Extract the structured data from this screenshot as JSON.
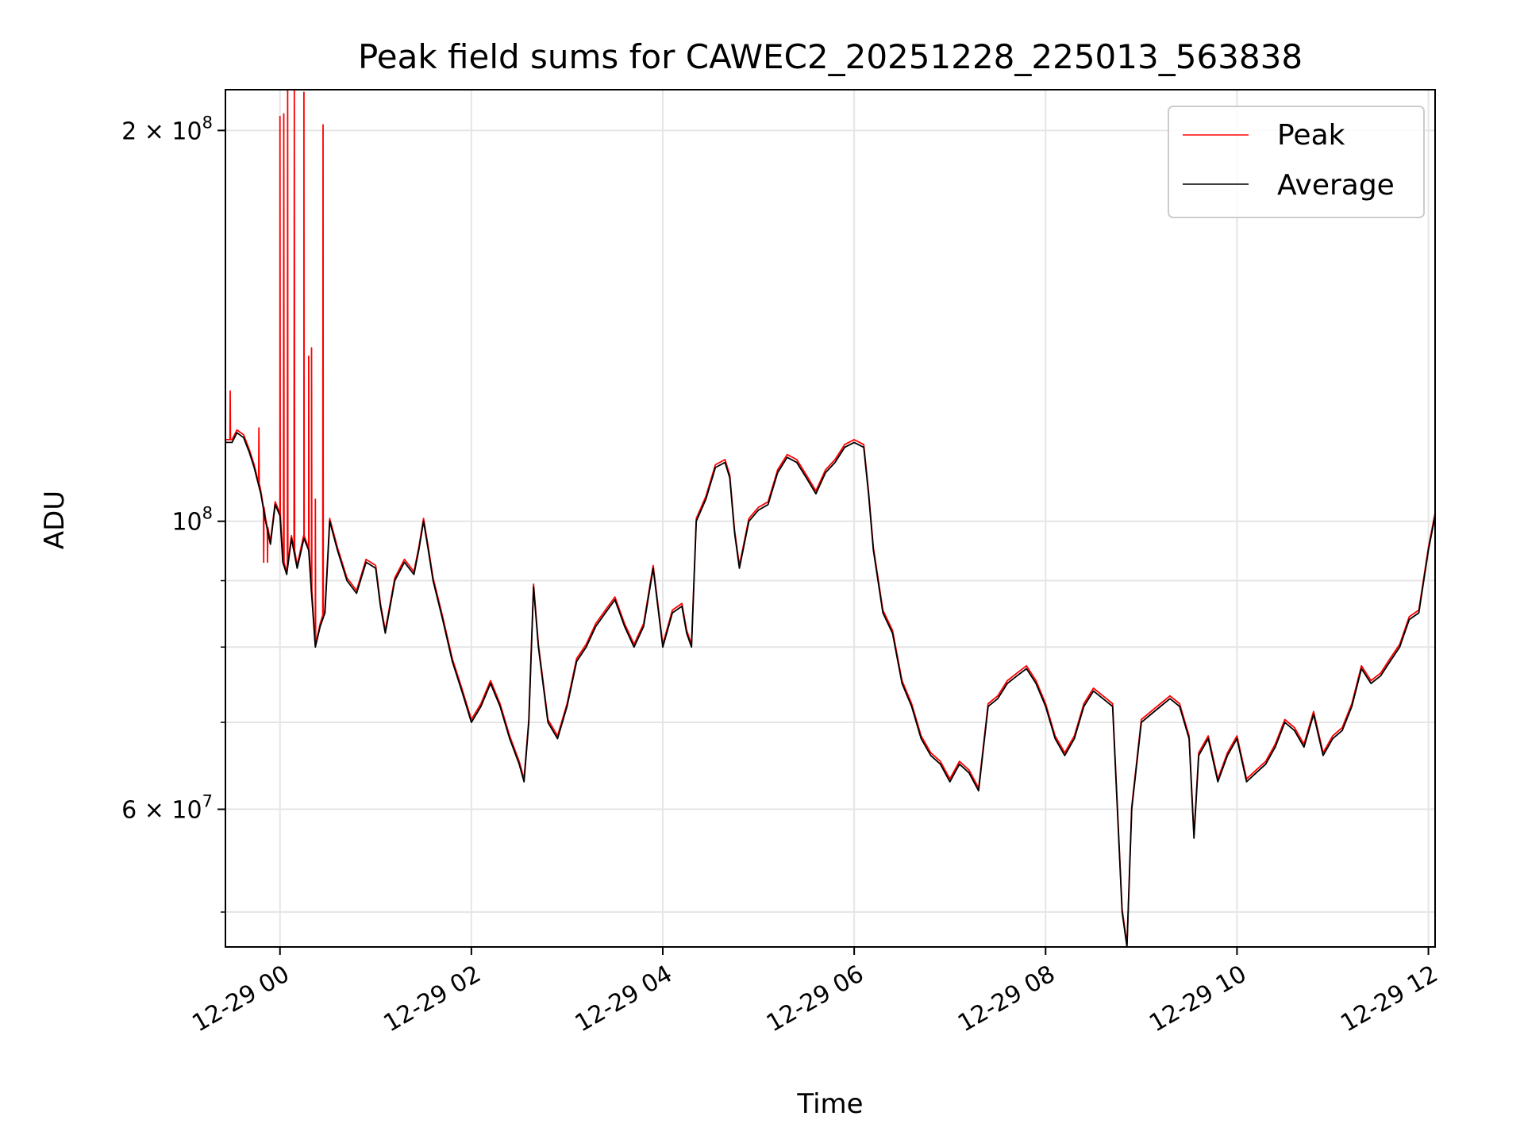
{
  "chart_data": {
    "type": "line",
    "title": "Peak field sums for CAWEC2_20251228_225013_563838",
    "xlabel": "Time",
    "ylabel": "ADU",
    "yscale": "log",
    "xlim_hours": [
      -0.57,
      12.07
    ],
    "ylim": [
      47000000,
      215000000
    ],
    "x_unit": "hours since 12-29 00",
    "x_ticks": [
      {
        "value": 0,
        "label": "12-29 00"
      },
      {
        "value": 2,
        "label": "12-29 02"
      },
      {
        "value": 4,
        "label": "12-29 04"
      },
      {
        "value": 6,
        "label": "12-29 06"
      },
      {
        "value": 8,
        "label": "12-29 08"
      },
      {
        "value": 10,
        "label": "12-29 10"
      },
      {
        "value": 12,
        "label": "12-29 12"
      }
    ],
    "y_ticks_major": [
      {
        "value": 60000000,
        "base": "6 × 10",
        "exp": "7"
      },
      {
        "value": 100000000,
        "base": "10",
        "exp": "8"
      },
      {
        "value": 200000000,
        "base": "2 × 10",
        "exp": "8"
      }
    ],
    "y_ticks_minor": [
      50000000,
      70000000,
      80000000,
      90000000
    ],
    "grid": true,
    "legend_position": "top-right",
    "series": [
      {
        "name": "Peak",
        "color": "#ff0000",
        "spikes": [
          {
            "x": -0.22,
            "y": 118000000
          },
          {
            "x": -0.17,
            "y": 93000000
          },
          {
            "x": -0.13,
            "y": 93000000
          },
          {
            "x": 0.0,
            "y": 205000000
          },
          {
            "x": 0.04,
            "y": 206000000
          },
          {
            "x": 0.08,
            "y": 215000000
          },
          {
            "x": 0.15,
            "y": 215000000
          },
          {
            "x": 0.25,
            "y": 214000000
          },
          {
            "x": 0.3,
            "y": 134000000
          },
          {
            "x": 0.33,
            "y": 136000000
          },
          {
            "x": 0.37,
            "y": 104000000
          },
          {
            "x": 0.45,
            "y": 202000000
          },
          {
            "x": -0.52,
            "y": 126000000
          }
        ]
      },
      {
        "name": "Average",
        "color": "#000000",
        "points": [
          [
            -0.57,
            115000000
          ],
          [
            -0.5,
            115000000
          ],
          [
            -0.45,
            117000000
          ],
          [
            -0.38,
            116000000
          ],
          [
            -0.32,
            113000000
          ],
          [
            -0.27,
            110000000
          ],
          [
            -0.2,
            105000000
          ],
          [
            -0.15,
            100000000
          ],
          [
            -0.1,
            96000000
          ],
          [
            -0.05,
            103000000
          ],
          [
            0.0,
            101000000
          ],
          [
            0.03,
            93000000
          ],
          [
            0.07,
            91000000
          ],
          [
            0.12,
            97000000
          ],
          [
            0.18,
            92000000
          ],
          [
            0.25,
            97000000
          ],
          [
            0.3,
            95000000
          ],
          [
            0.33,
            88000000
          ],
          [
            0.37,
            80000000
          ],
          [
            0.42,
            83000000
          ],
          [
            0.47,
            85000000
          ],
          [
            0.52,
            100000000
          ],
          [
            0.6,
            95000000
          ],
          [
            0.7,
            90000000
          ],
          [
            0.8,
            88000000
          ],
          [
            0.9,
            93000000
          ],
          [
            1.0,
            92000000
          ],
          [
            1.05,
            86000000
          ],
          [
            1.1,
            82000000
          ],
          [
            1.2,
            90000000
          ],
          [
            1.3,
            93000000
          ],
          [
            1.4,
            91000000
          ],
          [
            1.45,
            95000000
          ],
          [
            1.5,
            100000000
          ],
          [
            1.55,
            95000000
          ],
          [
            1.6,
            90000000
          ],
          [
            1.7,
            84000000
          ],
          [
            1.8,
            78000000
          ],
          [
            1.9,
            74000000
          ],
          [
            2.0,
            70000000
          ],
          [
            2.1,
            72000000
          ],
          [
            2.2,
            75000000
          ],
          [
            2.3,
            72000000
          ],
          [
            2.4,
            68000000
          ],
          [
            2.5,
            65000000
          ],
          [
            2.55,
            63000000
          ],
          [
            2.6,
            70000000
          ],
          [
            2.65,
            89000000
          ],
          [
            2.7,
            80000000
          ],
          [
            2.8,
            70000000
          ],
          [
            2.9,
            68000000
          ],
          [
            3.0,
            72000000
          ],
          [
            3.1,
            78000000
          ],
          [
            3.2,
            80000000
          ],
          [
            3.3,
            83000000
          ],
          [
            3.4,
            85000000
          ],
          [
            3.5,
            87000000
          ],
          [
            3.6,
            83000000
          ],
          [
            3.7,
            80000000
          ],
          [
            3.8,
            83000000
          ],
          [
            3.9,
            92000000
          ],
          [
            4.0,
            80000000
          ],
          [
            4.1,
            85000000
          ],
          [
            4.2,
            86000000
          ],
          [
            4.25,
            82000000
          ],
          [
            4.3,
            80000000
          ],
          [
            4.35,
            100000000
          ],
          [
            4.45,
            104000000
          ],
          [
            4.55,
            110000000
          ],
          [
            4.65,
            111000000
          ],
          [
            4.7,
            108000000
          ],
          [
            4.75,
            98000000
          ],
          [
            4.8,
            92000000
          ],
          [
            4.9,
            100000000
          ],
          [
            5.0,
            102000000
          ],
          [
            5.1,
            103000000
          ],
          [
            5.2,
            109000000
          ],
          [
            5.3,
            112000000
          ],
          [
            5.4,
            111000000
          ],
          [
            5.5,
            108000000
          ],
          [
            5.6,
            105000000
          ],
          [
            5.7,
            109000000
          ],
          [
            5.8,
            111000000
          ],
          [
            5.9,
            114000000
          ],
          [
            6.0,
            115000000
          ],
          [
            6.1,
            114000000
          ],
          [
            6.15,
            105000000
          ],
          [
            6.2,
            95000000
          ],
          [
            6.3,
            85000000
          ],
          [
            6.4,
            82000000
          ],
          [
            6.5,
            75000000
          ],
          [
            6.6,
            72000000
          ],
          [
            6.7,
            68000000
          ],
          [
            6.8,
            66000000
          ],
          [
            6.9,
            65000000
          ],
          [
            7.0,
            63000000
          ],
          [
            7.1,
            65000000
          ],
          [
            7.2,
            64000000
          ],
          [
            7.3,
            62000000
          ],
          [
            7.4,
            72000000
          ],
          [
            7.5,
            73000000
          ],
          [
            7.6,
            75000000
          ],
          [
            7.7,
            76000000
          ],
          [
            7.8,
            77000000
          ],
          [
            7.9,
            75000000
          ],
          [
            8.0,
            72000000
          ],
          [
            8.1,
            68000000
          ],
          [
            8.2,
            66000000
          ],
          [
            8.3,
            68000000
          ],
          [
            8.4,
            72000000
          ],
          [
            8.5,
            74000000
          ],
          [
            8.6,
            73000000
          ],
          [
            8.7,
            72000000
          ],
          [
            8.75,
            60000000
          ],
          [
            8.8,
            50000000
          ],
          [
            8.85,
            47000000
          ],
          [
            8.9,
            60000000
          ],
          [
            9.0,
            70000000
          ],
          [
            9.1,
            71000000
          ],
          [
            9.2,
            72000000
          ],
          [
            9.3,
            73000000
          ],
          [
            9.4,
            72000000
          ],
          [
            9.5,
            68000000
          ],
          [
            9.55,
            57000000
          ],
          [
            9.6,
            66000000
          ],
          [
            9.7,
            68000000
          ],
          [
            9.8,
            63000000
          ],
          [
            9.9,
            66000000
          ],
          [
            10.0,
            68000000
          ],
          [
            10.1,
            63000000
          ],
          [
            10.2,
            64000000
          ],
          [
            10.3,
            65000000
          ],
          [
            10.4,
            67000000
          ],
          [
            10.5,
            70000000
          ],
          [
            10.6,
            69000000
          ],
          [
            10.7,
            67000000
          ],
          [
            10.8,
            71000000
          ],
          [
            10.9,
            66000000
          ],
          [
            11.0,
            68000000
          ],
          [
            11.1,
            69000000
          ],
          [
            11.2,
            72000000
          ],
          [
            11.3,
            77000000
          ],
          [
            11.4,
            75000000
          ],
          [
            11.5,
            76000000
          ],
          [
            11.6,
            78000000
          ],
          [
            11.7,
            80000000
          ],
          [
            11.8,
            84000000
          ],
          [
            11.9,
            85000000
          ],
          [
            12.0,
            95000000
          ],
          [
            12.07,
            101000000
          ]
        ]
      }
    ],
    "legend": [
      {
        "label": "Peak",
        "color": "#ff0000"
      },
      {
        "label": "Average",
        "color": "#000000"
      }
    ]
  }
}
